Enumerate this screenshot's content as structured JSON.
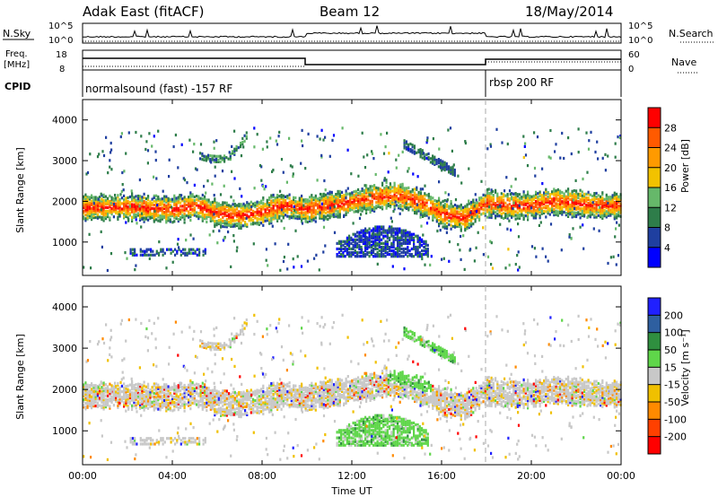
{
  "header": {
    "station": "Adak East (fitACF)",
    "beam": "Beam 12",
    "date": "18/May/2014"
  },
  "top_panel": {
    "nsky_label": "N.Sky",
    "nsearch_label": "N.Search",
    "tick_top": "10^5",
    "tick_bottom": "10^0",
    "freq_label": "Freq.",
    "freq_unit": "[MHz]",
    "freq_ticks": [
      "18",
      "8"
    ],
    "nave_label": "Nave",
    "nave_ticks": [
      "60",
      "0"
    ],
    "cpid_label": "CPID",
    "cpid_1": "normalsound (fast) -157 RF",
    "cpid_2": "rbsp 200 RF"
  },
  "colors": {
    "power_scale": [
      "#0000ff",
      "#1f3fa0",
      "#2e7d4a",
      "#66b86a",
      "#f2c200",
      "#ff9a00",
      "#ff5a00",
      "#ff0000"
    ],
    "velocity_scale": [
      "#2020ff",
      "#2e5fa0",
      "#2f8f3f",
      "#5fd64a",
      "#c8c8c8",
      "#f0c000",
      "#ff8a00",
      "#ff4000",
      "#ff0000"
    ]
  },
  "chart_data": [
    {
      "type": "heatmap",
      "name": "power",
      "ylabel": "Slant Range [km]",
      "ylim": [
        180,
        4500
      ],
      "yticks": [
        "1000",
        "2000",
        "3000",
        "4000"
      ],
      "xlim": [
        0,
        24
      ],
      "colorbar": {
        "label": "Power [dB]",
        "ticks": [
          "4",
          "8",
          "12",
          "16",
          "20",
          "24",
          "28"
        ]
      },
      "band_main_km": [
        [
          0,
          1850
        ],
        [
          2,
          1870
        ],
        [
          4,
          1800
        ],
        [
          5,
          1900
        ],
        [
          6,
          1700
        ],
        [
          7,
          1650
        ],
        [
          8,
          1750
        ],
        [
          9,
          1900
        ],
        [
          10,
          1800
        ],
        [
          11,
          1900
        ],
        [
          12,
          2000
        ],
        [
          13,
          2100
        ],
        [
          14,
          2150
        ],
        [
          15,
          2000
        ],
        [
          16,
          1700
        ],
        [
          17,
          1600
        ],
        [
          18,
          1950
        ],
        [
          19,
          1900
        ],
        [
          20,
          1900
        ],
        [
          21,
          2000
        ],
        [
          22,
          1950
        ],
        [
          23,
          1900
        ],
        [
          24,
          1900
        ]
      ]
    },
    {
      "type": "heatmap",
      "name": "velocity",
      "ylabel": "Slant Range [km]",
      "ylim": [
        180,
        4500
      ],
      "yticks": [
        "1000",
        "2000",
        "3000",
        "4000"
      ],
      "xlim": [
        0,
        24
      ],
      "xticks": [
        "00:00",
        "04:00",
        "08:00",
        "12:00",
        "16:00",
        "20:00",
        "00:00"
      ],
      "xlabel": "Time UT",
      "colorbar": {
        "label": "Velocity [m s⁻¹]",
        "ticks": [
          "200",
          "100",
          "50",
          "15",
          "-15",
          "-50",
          "-100",
          "-200"
        ]
      }
    }
  ]
}
